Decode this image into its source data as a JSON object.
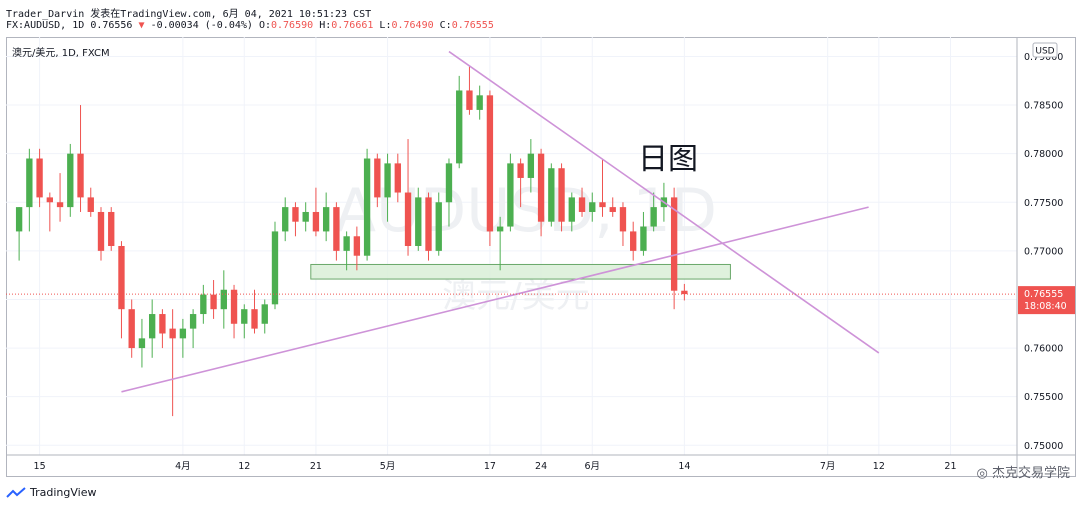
{
  "header": {
    "line1": "Trader_Darvin 发表在TradingView.com, 6月 04, 2021 10:51:23 CST",
    "symbol": "FX:AUDUSD, 1D",
    "last": "0.76556",
    "change": "-0.00034 (-0.04%)",
    "o_label": "O:",
    "o": "0.76590",
    "h_label": "H:",
    "h": "0.76661",
    "l_label": "L:",
    "l": "0.76490",
    "c_label": "C:",
    "c": "0.76555"
  },
  "pane_label": "澳元/美元, 1D, FXCM",
  "currency_badge": "USD",
  "annotation": "日图",
  "background_watermark": {
    "ticker": "AUDUSD, 1D",
    "name": "澳元/美元"
  },
  "price_tag": {
    "value": "0.76555",
    "countdown": "18:08:40"
  },
  "footer": {
    "brand": "TradingView"
  },
  "watermark": "杰克交易学院",
  "colors": {
    "up": "#4caf50",
    "down": "#ef5350",
    "trendline": "#ce93d8",
    "zone_fill": "#d9efd7",
    "zone_border": "#6aa86a"
  },
  "chart_data": {
    "type": "candlestick",
    "y_axis": {
      "ticks": [
        "0.79000",
        "0.78500",
        "0.78000",
        "0.77500",
        "0.77000",
        "0.76500",
        "0.76000",
        "0.75500",
        "0.75000"
      ],
      "range": [
        0.749,
        0.792
      ]
    },
    "x_axis": {
      "ticks": [
        {
          "label": "15",
          "index": 2
        },
        {
          "label": "4月",
          "index": 16
        },
        {
          "label": "12",
          "index": 22
        },
        {
          "label": "21",
          "index": 29
        },
        {
          "label": "5月",
          "index": 36
        },
        {
          "label": "17",
          "index": 46
        },
        {
          "label": "24",
          "index": 51
        },
        {
          "label": "6月",
          "index": 56
        },
        {
          "label": "14",
          "index": 65
        },
        {
          "label": "7月",
          "index": 79
        },
        {
          "label": "12",
          "index": 84
        },
        {
          "label": "21",
          "index": 91
        }
      ],
      "total_slots": 98
    },
    "candles": [
      {
        "o": 0.772,
        "h": 0.7745,
        "l": 0.769,
        "c": 0.7745
      },
      {
        "o": 0.7745,
        "h": 0.7805,
        "l": 0.772,
        "c": 0.7795
      },
      {
        "o": 0.7795,
        "h": 0.7805,
        "l": 0.7745,
        "c": 0.7755
      },
      {
        "o": 0.7755,
        "h": 0.776,
        "l": 0.772,
        "c": 0.775
      },
      {
        "o": 0.775,
        "h": 0.778,
        "l": 0.773,
        "c": 0.7745
      },
      {
        "o": 0.7745,
        "h": 0.781,
        "l": 0.7735,
        "c": 0.78
      },
      {
        "o": 0.78,
        "h": 0.785,
        "l": 0.774,
        "c": 0.7755
      },
      {
        "o": 0.7755,
        "h": 0.7765,
        "l": 0.7735,
        "c": 0.774
      },
      {
        "o": 0.774,
        "h": 0.7745,
        "l": 0.769,
        "c": 0.77
      },
      {
        "o": 0.774,
        "h": 0.7745,
        "l": 0.77,
        "c": 0.7705
      },
      {
        "o": 0.7705,
        "h": 0.771,
        "l": 0.761,
        "c": 0.764
      },
      {
        "o": 0.764,
        "h": 0.765,
        "l": 0.759,
        "c": 0.76
      },
      {
        "o": 0.76,
        "h": 0.763,
        "l": 0.758,
        "c": 0.761
      },
      {
        "o": 0.761,
        "h": 0.765,
        "l": 0.759,
        "c": 0.7635
      },
      {
        "o": 0.7635,
        "h": 0.764,
        "l": 0.76,
        "c": 0.7615
      },
      {
        "o": 0.762,
        "h": 0.764,
        "l": 0.753,
        "c": 0.761
      },
      {
        "o": 0.761,
        "h": 0.763,
        "l": 0.759,
        "c": 0.762
      },
      {
        "o": 0.762,
        "h": 0.764,
        "l": 0.76,
        "c": 0.7635
      },
      {
        "o": 0.7635,
        "h": 0.7665,
        "l": 0.7625,
        "c": 0.7655
      },
      {
        "o": 0.7655,
        "h": 0.767,
        "l": 0.763,
        "c": 0.764
      },
      {
        "o": 0.764,
        "h": 0.768,
        "l": 0.762,
        "c": 0.766
      },
      {
        "o": 0.766,
        "h": 0.7665,
        "l": 0.761,
        "c": 0.7625
      },
      {
        "o": 0.7625,
        "h": 0.7645,
        "l": 0.761,
        "c": 0.764
      },
      {
        "o": 0.764,
        "h": 0.766,
        "l": 0.7615,
        "c": 0.762
      },
      {
        "o": 0.7625,
        "h": 0.765,
        "l": 0.7615,
        "c": 0.7645
      },
      {
        "o": 0.7645,
        "h": 0.773,
        "l": 0.764,
        "c": 0.772
      },
      {
        "o": 0.772,
        "h": 0.7755,
        "l": 0.771,
        "c": 0.7745
      },
      {
        "o": 0.7745,
        "h": 0.775,
        "l": 0.7715,
        "c": 0.773
      },
      {
        "o": 0.773,
        "h": 0.775,
        "l": 0.772,
        "c": 0.774
      },
      {
        "o": 0.774,
        "h": 0.7765,
        "l": 0.7715,
        "c": 0.772
      },
      {
        "o": 0.772,
        "h": 0.776,
        "l": 0.771,
        "c": 0.7745
      },
      {
        "o": 0.7745,
        "h": 0.775,
        "l": 0.769,
        "c": 0.77
      },
      {
        "o": 0.77,
        "h": 0.772,
        "l": 0.768,
        "c": 0.7715
      },
      {
        "o": 0.7715,
        "h": 0.7725,
        "l": 0.768,
        "c": 0.7695
      },
      {
        "o": 0.7695,
        "h": 0.7805,
        "l": 0.769,
        "c": 0.7795
      },
      {
        "o": 0.7795,
        "h": 0.78,
        "l": 0.7745,
        "c": 0.7755
      },
      {
        "o": 0.7755,
        "h": 0.78,
        "l": 0.773,
        "c": 0.779
      },
      {
        "o": 0.779,
        "h": 0.78,
        "l": 0.775,
        "c": 0.776
      },
      {
        "o": 0.776,
        "h": 0.7815,
        "l": 0.7695,
        "c": 0.7705
      },
      {
        "o": 0.7705,
        "h": 0.7765,
        "l": 0.77,
        "c": 0.7755
      },
      {
        "o": 0.7755,
        "h": 0.776,
        "l": 0.769,
        "c": 0.77
      },
      {
        "o": 0.77,
        "h": 0.776,
        "l": 0.7695,
        "c": 0.775
      },
      {
        "o": 0.775,
        "h": 0.7795,
        "l": 0.7725,
        "c": 0.779
      },
      {
        "o": 0.779,
        "h": 0.788,
        "l": 0.7785,
        "c": 0.7865
      },
      {
        "o": 0.7865,
        "h": 0.789,
        "l": 0.784,
        "c": 0.7845
      },
      {
        "o": 0.7845,
        "h": 0.787,
        "l": 0.7835,
        "c": 0.786
      },
      {
        "o": 0.786,
        "h": 0.7865,
        "l": 0.7705,
        "c": 0.772
      },
      {
        "o": 0.772,
        "h": 0.7735,
        "l": 0.768,
        "c": 0.7725
      },
      {
        "o": 0.7725,
        "h": 0.78,
        "l": 0.772,
        "c": 0.779
      },
      {
        "o": 0.779,
        "h": 0.7795,
        "l": 0.7745,
        "c": 0.7775
      },
      {
        "o": 0.7775,
        "h": 0.7815,
        "l": 0.776,
        "c": 0.78
      },
      {
        "o": 0.78,
        "h": 0.7805,
        "l": 0.7715,
        "c": 0.773
      },
      {
        "o": 0.773,
        "h": 0.779,
        "l": 0.7725,
        "c": 0.7785
      },
      {
        "o": 0.7785,
        "h": 0.779,
        "l": 0.772,
        "c": 0.773
      },
      {
        "o": 0.773,
        "h": 0.776,
        "l": 0.772,
        "c": 0.7755
      },
      {
        "o": 0.7755,
        "h": 0.7765,
        "l": 0.7735,
        "c": 0.774
      },
      {
        "o": 0.774,
        "h": 0.776,
        "l": 0.773,
        "c": 0.775
      },
      {
        "o": 0.775,
        "h": 0.7795,
        "l": 0.7735,
        "c": 0.7745
      },
      {
        "o": 0.7745,
        "h": 0.7755,
        "l": 0.7735,
        "c": 0.774
      },
      {
        "o": 0.7745,
        "h": 0.775,
        "l": 0.7705,
        "c": 0.772
      },
      {
        "o": 0.772,
        "h": 0.773,
        "l": 0.769,
        "c": 0.77
      },
      {
        "o": 0.77,
        "h": 0.774,
        "l": 0.7695,
        "c": 0.7725
      },
      {
        "o": 0.7725,
        "h": 0.776,
        "l": 0.772,
        "c": 0.7745
      },
      {
        "o": 0.7745,
        "h": 0.777,
        "l": 0.773,
        "c": 0.7755
      },
      {
        "o": 0.7755,
        "h": 0.7765,
        "l": 0.764,
        "c": 0.7659
      },
      {
        "o": 0.7659,
        "h": 0.7666,
        "l": 0.7649,
        "c": 0.76555
      }
    ],
    "candle_slot_start": 0,
    "zone": {
      "from_index": 29,
      "to_index": 70,
      "top": 0.7686,
      "bottom": 0.7671
    },
    "trendlines": [
      {
        "from": {
          "index": 10,
          "price": 0.7555
        },
        "to": {
          "index": 83,
          "price": 0.7745
        }
      },
      {
        "from": {
          "index": 42,
          "price": 0.7905
        },
        "to": {
          "index": 84,
          "price": 0.7595
        }
      }
    ],
    "last_price": 0.76555
  }
}
